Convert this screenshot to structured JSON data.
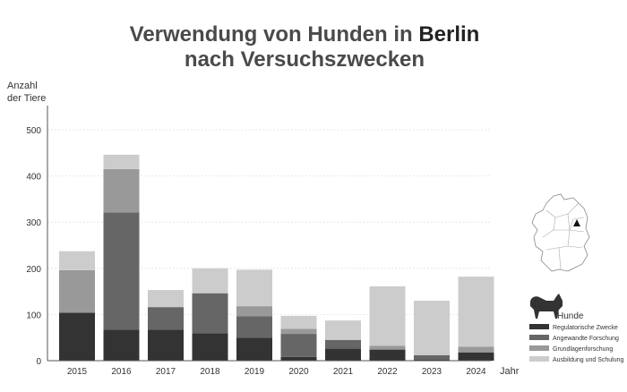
{
  "title": {
    "line1_prefix": "Verwendung von Hunden in ",
    "line1_highlight": "Berlin",
    "line2": "nach Versuchszwecken"
  },
  "colors": {
    "regulatory": "#333333",
    "applied": "#666666",
    "basic": "#999999",
    "education": "#cccccc"
  },
  "legend": {
    "animal": "Hunde",
    "animal_icon": "dog-icon",
    "map_icon": "germany-map-icon"
  },
  "chart_data": {
    "type": "bar",
    "stacked": true,
    "categories": [
      "2015",
      "2016",
      "2017",
      "2018",
      "2019",
      "2020",
      "2021",
      "2022",
      "2023",
      "2024"
    ],
    "series": [
      {
        "name": "Regulatorische Zwecke",
        "values": [
          104,
          67,
          67,
          59,
          50,
          8,
          26,
          24,
          2,
          18
        ]
      },
      {
        "name": "Angewandte Forschung",
        "values": [
          0,
          254,
          49,
          87,
          46,
          50,
          19,
          0,
          10,
          0
        ]
      },
      {
        "name": "Grundlagenforschung",
        "values": [
          92,
          94,
          0,
          0,
          22,
          11,
          0,
          8,
          0,
          12
        ]
      },
      {
        "name": "Ausbildung und Schulung",
        "values": [
          41,
          31,
          37,
          54,
          79,
          28,
          42,
          129,
          118,
          152
        ]
      }
    ],
    "ylabel": "Anzahl\nder Tiere",
    "ylabel_lines": [
      "Anzahl",
      "der Tiere"
    ],
    "xlabel": "Jahr",
    "ylim": [
      0,
      500
    ],
    "yticks": [
      0,
      100,
      200,
      300,
      400,
      500
    ],
    "grid": true,
    "legend_position": "bottom-right"
  }
}
